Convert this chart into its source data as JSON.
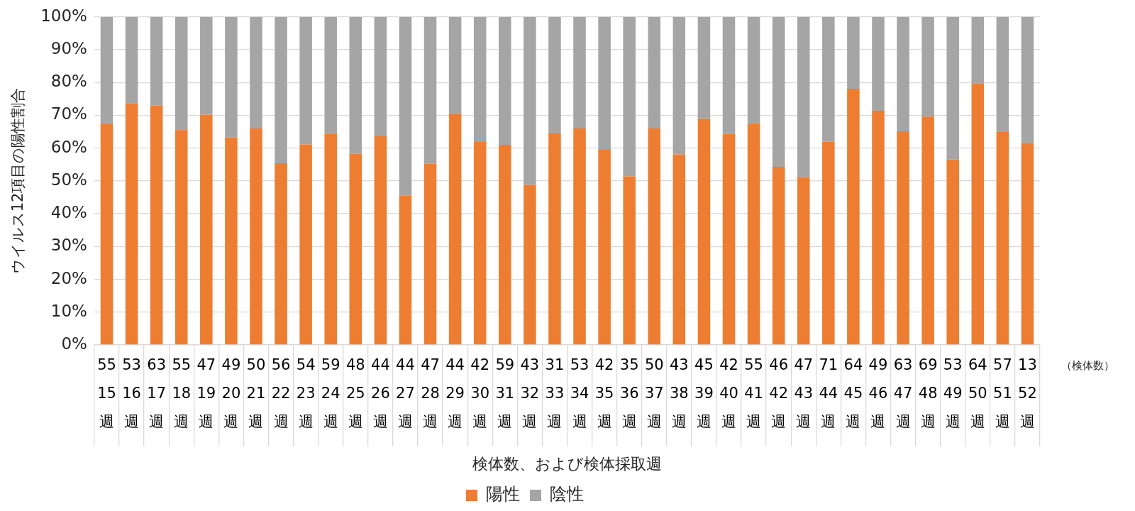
{
  "chart_data": {
    "type": "bar",
    "stacked": true,
    "ylabel": "ウイルス12項目の陽性割合",
    "xlabel": "検体数、および検体採取週",
    "categories": [
      "55\n15\n週",
      "53\n16\n週",
      "63\n17\n週",
      "55\n18\n週",
      "47\n19\n週",
      "49\n20\n週",
      "50\n21\n週",
      "56\n22\n週",
      "54\n23\n週",
      "59\n24\n週",
      "48\n25\n週",
      "44\n26\n週",
      "44\n27\n週",
      "47\n28\n週",
      "44\n29\n週",
      "42\n30\n週",
      "59\n31\n週",
      "43\n32\n週",
      "31\n33\n週",
      "53\n34\n週",
      "42\n35\n週",
      "35\n36\n週",
      "50\n37\n週",
      "43\n38\n週",
      "45\n39\n週",
      "42\n40\n週",
      "55\n41\n週",
      "46\n42\n週",
      "47\n43\n週",
      "71\n44\n週",
      "64\n45\n週",
      "49\n46\n週",
      "63\n47\n週",
      "69\n48\n週",
      "53\n49\n週",
      "64\n50\n週",
      "57\n51\n週",
      "13\n52\n週"
    ],
    "series": [
      {
        "name": "陽性",
        "color": "#ed7d31",
        "values": [
          67.3,
          73.6,
          73.0,
          65.5,
          70.2,
          63.3,
          66.0,
          55.4,
          61.1,
          64.4,
          58.3,
          63.6,
          45.5,
          55.3,
          70.5,
          61.9,
          61.0,
          48.8,
          64.5,
          66.0,
          59.5,
          51.4,
          66.0,
          58.1,
          68.9,
          64.3,
          67.3,
          54.3,
          51.1,
          62.0,
          78.1,
          71.4,
          65.1,
          69.6,
          56.6,
          79.7,
          64.9,
          61.5
        ]
      },
      {
        "name": "陰性",
        "color": "#a5a5a5",
        "values": [
          32.7,
          26.4,
          27.0,
          34.5,
          29.8,
          36.7,
          34.0,
          44.6,
          38.9,
          35.6,
          41.7,
          36.4,
          54.5,
          44.7,
          29.5,
          38.1,
          39.0,
          51.2,
          35.5,
          34.0,
          40.5,
          48.6,
          34.0,
          41.9,
          31.1,
          35.7,
          32.7,
          45.7,
          48.9,
          38.0,
          21.9,
          28.6,
          34.9,
          30.4,
          43.4,
          20.3,
          35.1,
          38.5
        ]
      }
    ],
    "ylim": [
      0,
      100
    ],
    "yticks": [
      {
        "value": 0,
        "label": "0%"
      },
      {
        "value": 10,
        "label": "10%"
      },
      {
        "value": 20,
        "label": "20%"
      },
      {
        "value": 30,
        "label": "30%"
      },
      {
        "value": 40,
        "label": "40%"
      },
      {
        "value": 50,
        "label": "50%"
      },
      {
        "value": 60,
        "label": "60%"
      },
      {
        "value": 70,
        "label": "70%"
      },
      {
        "value": 80,
        "label": "80%"
      },
      {
        "value": 90,
        "label": "90%"
      },
      {
        "value": 100,
        "label": "100%"
      }
    ],
    "grid": "y",
    "legend": "bottom",
    "annotations": [
      "（検体数）"
    ]
  }
}
